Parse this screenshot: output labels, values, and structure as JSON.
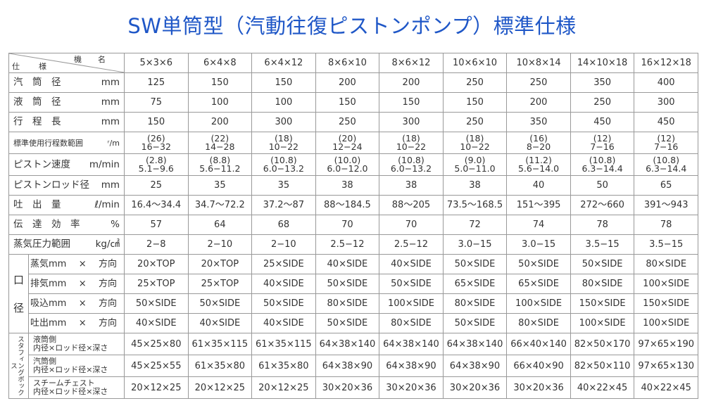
{
  "title": "SW単筒型（汽動往復ピストンポンプ）標準仕様",
  "header": {
    "model_label": "機　名",
    "spec_label": "仕　様",
    "models": [
      "5×3×6",
      "6×4×8",
      "6×4×12",
      "8×6×10",
      "8×6×12",
      "10×6×10",
      "10×8×14",
      "14×10×18",
      "16×12×18"
    ]
  },
  "rows": [
    {
      "label": "汽　筒　径",
      "unit": "mm",
      "values": [
        "125",
        "150",
        "150",
        "200",
        "200",
        "250",
        "250",
        "350",
        "400"
      ]
    },
    {
      "label": "液　筒　径",
      "unit": "mm",
      "values": [
        "75",
        "100",
        "100",
        "150",
        "150",
        "150",
        "200",
        "250",
        "300"
      ]
    },
    {
      "label": "行　程　長",
      "unit": "mm",
      "values": [
        "150",
        "200",
        "300",
        "250",
        "300",
        "250",
        "350",
        "450",
        "450"
      ]
    }
  ],
  "stroke_row": {
    "label": "標準使用行程数範囲",
    "unit": "ʳ/m",
    "top": [
      "(26)",
      "(22)",
      "(18)",
      "(20)",
      "(18)",
      "(18)",
      "(16)",
      "(12)",
      "(12)"
    ],
    "bottom": [
      "16−32",
      "14−28",
      "10−22",
      "12−24",
      "10−22",
      "10−22",
      "8−20",
      "7−16",
      "7−16"
    ]
  },
  "speed_row": {
    "label": "ピストン速度",
    "unit": "m/min",
    "top": [
      "(2.8)",
      "(8.8)",
      "(10.8)",
      "(10.0)",
      "(10.8)",
      "(9.0)",
      "(11.2)",
      "(10.8)",
      "(10.8)"
    ],
    "bottom": [
      "5.1−9.6",
      "5.6−11.2",
      "6.0−13.2",
      "6.0−12.0",
      "6.0−13.2",
      "5.0−11.0",
      "5.6−14.0",
      "6.3−14.4",
      "6.3−14.4"
    ]
  },
  "rows2": [
    {
      "label": "ピストンロッド径",
      "unit": "mm",
      "values": [
        "25",
        "35",
        "35",
        "38",
        "38",
        "38",
        "40",
        "50",
        "65"
      ]
    },
    {
      "label": "吐　出　量",
      "unit": "ℓ/min",
      "values": [
        "16.4〜34.4",
        "34.7〜72.2",
        "37.2〜87",
        "88〜184.5",
        "88〜205",
        "73.5〜168.5",
        "151〜395",
        "272〜660",
        "391〜943"
      ]
    },
    {
      "label": "伝　達　効　率",
      "unit": "%",
      "values": [
        "57",
        "64",
        "68",
        "70",
        "70",
        "72",
        "74",
        "78",
        "78"
      ]
    },
    {
      "label": "蒸気圧力範囲",
      "unit": "kg/㎠",
      "values": [
        "2−8",
        "2−10",
        "2−10",
        "2.5−12",
        "2.5−12",
        "3.0−15",
        "3.0−15",
        "3.5−15",
        "3.5−15"
      ]
    }
  ],
  "port_group": {
    "label1": "口",
    "label2": "径"
  },
  "ports": [
    {
      "label": "蒸気mm",
      "x": "×",
      "dir": "方向",
      "values": [
        "20×TOP",
        "20×TOP",
        "25×SIDE",
        "40×SIDE",
        "40×SIDE",
        "50×SIDE",
        "50×SIDE",
        "50×SIDE",
        "80×SIDE"
      ]
    },
    {
      "label": "排気mm",
      "x": "×",
      "dir": "方向",
      "values": [
        "25×TOP",
        "25×TOP",
        "40×SIDE",
        "50×SIDE",
        "50×SIDE",
        "65×SIDE",
        "65×SIDE",
        "80×SIDE",
        "100×SIDE"
      ]
    },
    {
      "label": "吸込mm",
      "x": "×",
      "dir": "方向",
      "values": [
        "50×SIDE",
        "50×SIDE",
        "50×SIDE",
        "80×SIDE",
        "100×SIDE",
        "80×SIDE",
        "100×SIDE",
        "150×SIDE",
        "150×SIDE"
      ]
    },
    {
      "label": "吐出mm",
      "x": "×",
      "dir": "方向",
      "values": [
        "40×SIDE",
        "40×SIDE",
        "40×SIDE",
        "50×SIDE",
        "80×SIDE",
        "50×SIDE",
        "80×SIDE",
        "100×SIDE",
        "100×SIDE"
      ]
    }
  ],
  "gland_group": {
    "label": "スタフィングボックス"
  },
  "glands": [
    {
      "label1": "液筒側",
      "label2": "内径×ロッド径×深さ",
      "values": [
        "45×25×80",
        "61×35×115",
        "61×35×115",
        "64×38×140",
        "64×38×140",
        "64×38×140",
        "66×40×140",
        "82×50×170",
        "97×65×190"
      ]
    },
    {
      "label1": "汽筒側",
      "label2": "内径×ロッド径×深さ",
      "values": [
        "45×25×55",
        "61×35×80",
        "61×35×80",
        "64×38×90",
        "64×38×90",
        "64×38×90",
        "66×40×90",
        "82×50×110",
        "97×65×130"
      ]
    },
    {
      "label1": "スチームチェスト",
      "label2": "内径×ロッド径×深さ",
      "values": [
        "20×12×25",
        "20×12×25",
        "20×12×25",
        "30×20×36",
        "30×20×36",
        "30×20×36",
        "30×20×36",
        "40×22×45",
        "40×22×45"
      ]
    }
  ]
}
